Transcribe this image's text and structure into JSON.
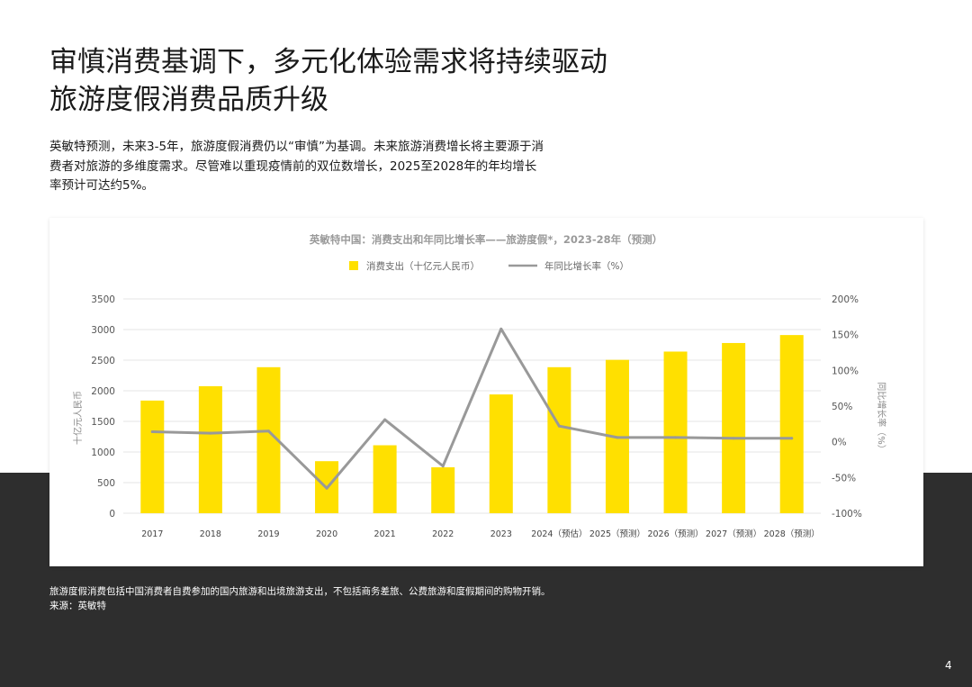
{
  "title": {
    "line1": "审慎消费基调下，多元化体验需求将持续驱动",
    "line2": "旅游度假消费品质升级"
  },
  "intro": {
    "line1": "英敏特预测，未来3-5年，旅游度假消费仍以“审慎”为基调。未来旅游消费增长将主要源于消",
    "line2": "费者对旅游的多维度需求。尽管难以重现疫情前的双位数增长，2025至2028年的年均增长",
    "line3": "率预计可达约5%。"
  },
  "chart_data": {
    "type": "bar+line",
    "title": "英敏特中国：消费支出和年同比增长率——旅游度假*，2023-28年（预测）",
    "categories": [
      "2017",
      "2018",
      "2019",
      "2020",
      "2021",
      "2022",
      "2023",
      "2024（预估）",
      "2025（预测）",
      "2026（预测）",
      "2027（预测）",
      "2028（预测）"
    ],
    "series": [
      {
        "name": "消费支出（十亿元人民币）",
        "kind": "bar",
        "axis": "left",
        "color": "#FFE000",
        "values": [
          1840,
          2075,
          2385,
          850,
          1110,
          750,
          1940,
          2385,
          2505,
          2640,
          2780,
          2910
        ]
      },
      {
        "name": "年同比增长率（%）",
        "kind": "line",
        "axis": "right",
        "color": "#999999",
        "values": [
          14,
          12,
          15,
          -65,
          31,
          -34,
          158,
          22,
          6,
          6,
          5,
          5
        ]
      }
    ],
    "y_left": {
      "label": "十亿元人民币",
      "range": [
        0,
        3500
      ],
      "ticks": [
        "3500",
        "3000",
        "2500",
        "2000",
        "1500",
        "1000",
        "500",
        "0"
      ]
    },
    "y_right": {
      "label": "同比增长率（%）",
      "range": [
        -100,
        200
      ],
      "ticks": [
        "200%",
        "150%",
        "100%",
        "50%",
        "0%",
        "-50%",
        "-100%"
      ]
    },
    "grid": true,
    "legend": "top-center"
  },
  "footnote": {
    "line1": "旅游度假消费包括中国消费者自费参加的国内旅游和出境旅游支出，不包括商务差旅、公费旅游和度假期间的购物开销。",
    "line2": "来源：英敏特"
  },
  "page_number": "4",
  "colors": {
    "dark_band": "#2e2e2e",
    "bar": "#FFE000",
    "line": "#999999"
  }
}
